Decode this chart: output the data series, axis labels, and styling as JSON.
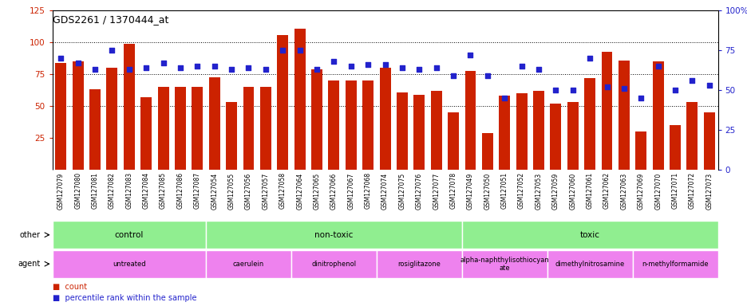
{
  "title": "GDS2261 / 1370444_at",
  "samples": [
    "GSM127079",
    "GSM127080",
    "GSM127081",
    "GSM127082",
    "GSM127083",
    "GSM127084",
    "GSM127085",
    "GSM127086",
    "GSM127087",
    "GSM127054",
    "GSM127055",
    "GSM127056",
    "GSM127057",
    "GSM127058",
    "GSM127064",
    "GSM127065",
    "GSM127066",
    "GSM127067",
    "GSM127068",
    "GSM127074",
    "GSM127075",
    "GSM127076",
    "GSM127077",
    "GSM127078",
    "GSM127049",
    "GSM127050",
    "GSM127051",
    "GSM127052",
    "GSM127053",
    "GSM127059",
    "GSM127060",
    "GSM127061",
    "GSM127062",
    "GSM127063",
    "GSM127069",
    "GSM127070",
    "GSM127071",
    "GSM127072",
    "GSM127073"
  ],
  "counts": [
    84,
    85,
    63,
    80,
    99,
    57,
    65,
    65,
    65,
    73,
    53,
    65,
    65,
    106,
    111,
    79,
    70,
    70,
    70,
    80,
    61,
    59,
    62,
    45,
    78,
    29,
    58,
    60,
    62,
    52,
    53,
    72,
    93,
    86,
    30,
    85,
    35,
    53,
    45
  ],
  "percentile_ranks": [
    70,
    67,
    63,
    75,
    63,
    64,
    67,
    64,
    65,
    65,
    63,
    64,
    63,
    75,
    75,
    63,
    68,
    65,
    66,
    66,
    64,
    63,
    64,
    59,
    72,
    59,
    45,
    65,
    63,
    50,
    50,
    70,
    52,
    51,
    45,
    65,
    50,
    56,
    53
  ],
  "bar_color": "#CC2200",
  "dot_color": "#2222CC",
  "ylim_left": [
    0,
    125
  ],
  "ylim_right": [
    0,
    100
  ],
  "yticks_left": [
    25,
    50,
    75,
    100,
    125
  ],
  "yticks_right": [
    0,
    25,
    50,
    75,
    100
  ],
  "grid_lines": [
    50,
    75,
    100
  ],
  "other_groups": [
    {
      "label": "control",
      "start": 0,
      "end": 9,
      "color": "#90EE90"
    },
    {
      "label": "non-toxic",
      "start": 9,
      "end": 24,
      "color": "#90EE90"
    },
    {
      "label": "toxic",
      "start": 24,
      "end": 39,
      "color": "#90EE90"
    }
  ],
  "agent_groups": [
    {
      "label": "untreated",
      "start": 0,
      "end": 9,
      "color": "#EE82EE"
    },
    {
      "label": "caerulein",
      "start": 9,
      "end": 14,
      "color": "#EE82EE"
    },
    {
      "label": "dinitrophenol",
      "start": 14,
      "end": 19,
      "color": "#EE82EE"
    },
    {
      "label": "rosiglitazone",
      "start": 19,
      "end": 24,
      "color": "#EE82EE"
    },
    {
      "label": "alpha-naphthylisothiocyan\nate",
      "start": 24,
      "end": 29,
      "color": "#EE82EE"
    },
    {
      "label": "dimethylnitrosamine",
      "start": 29,
      "end": 34,
      "color": "#EE82EE"
    },
    {
      "label": "n-methylformamide",
      "start": 34,
      "end": 39,
      "color": "#EE82EE"
    }
  ],
  "legend_count_label": "count",
  "legend_pct_label": "percentile rank within the sample",
  "tick_bg_color": "#D3D3D3",
  "plot_bg": "#FFFFFF",
  "label_col_bg": "#D3D3D3"
}
